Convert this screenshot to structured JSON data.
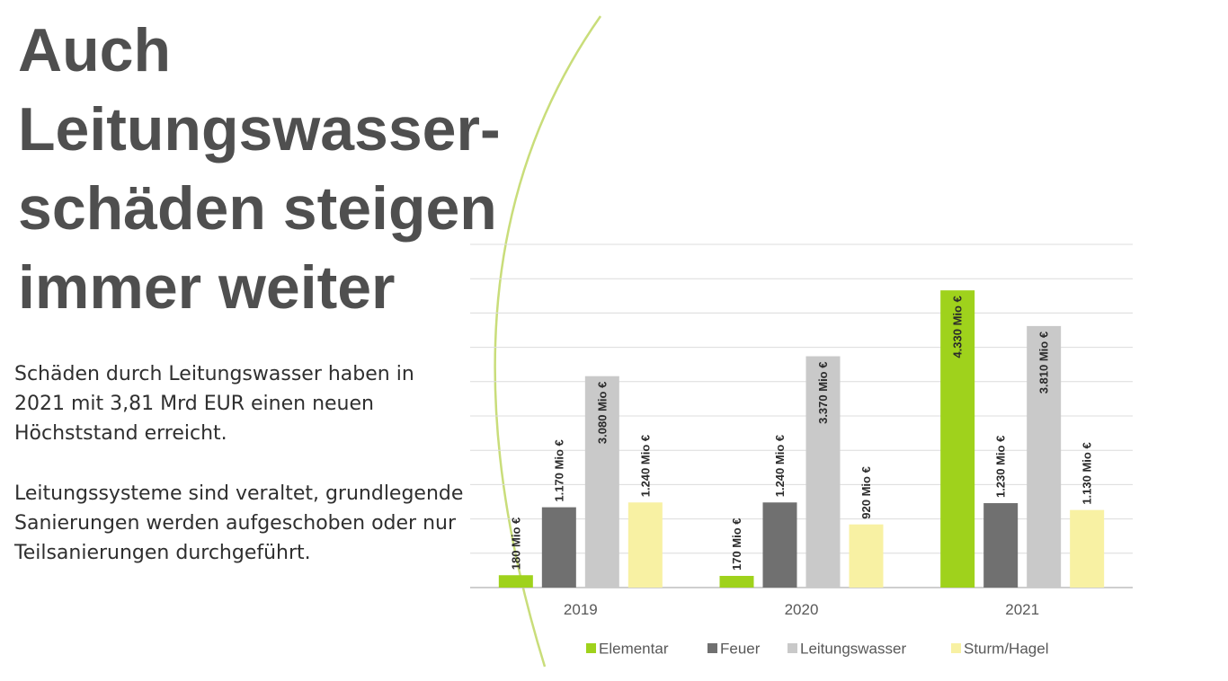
{
  "slide": {
    "title_lines": [
      "Auch",
      "Leitungswasser-",
      "schäden steigen",
      "immer weiter"
    ],
    "paragraph1": "Schäden durch Leitungswasser haben in 2021 mit 3,81 Mrd EUR einen neuen Höchststand erreicht.",
    "paragraph2": "Leitungssysteme sind veraltet, grundlegende Sanierungen werden aufgeschoben oder nur Teilsanierungen durchgeführt.",
    "accent_color": "#c9dd7a"
  },
  "chart_data": {
    "type": "bar",
    "categories": [
      "2019",
      "2020",
      "2021"
    ],
    "series": [
      {
        "name": "Elementar",
        "color": "#9fd21c",
        "values": [
          180,
          170,
          4330
        ],
        "labels": [
          "180 Mio €",
          "170 Mio €",
          "4.330 Mio €"
        ]
      },
      {
        "name": "Feuer",
        "color": "#707070",
        "values": [
          1170,
          1240,
          1230
        ],
        "labels": [
          "1.170 Mio €",
          "1.240 Mio €",
          "1.230 Mio €"
        ]
      },
      {
        "name": "Leitungswasser",
        "color": "#c9c9c9",
        "values": [
          3080,
          3370,
          3810
        ],
        "labels": [
          "3.080 Mio €",
          "3.370 Mio €",
          "3.810 Mio €"
        ]
      },
      {
        "name": "Sturm/Hagel",
        "color": "#f8f1a3",
        "values": [
          1240,
          920,
          1130
        ],
        "labels": [
          "1.240 Mio €",
          "920 Mio €",
          "1.130 Mio €"
        ]
      }
    ],
    "ylim": [
      0,
      5000
    ],
    "y_grid_step": 500,
    "grid": true,
    "legend_position": "bottom"
  }
}
